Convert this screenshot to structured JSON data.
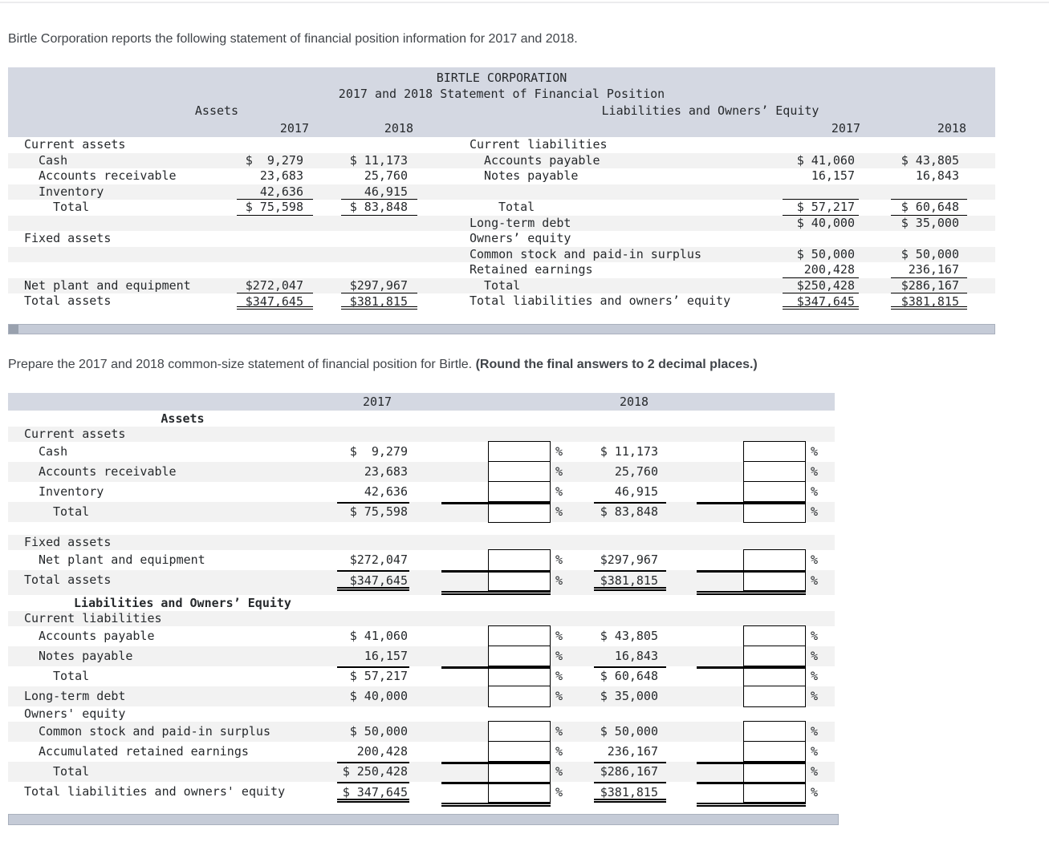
{
  "colors": {
    "header_band": "#d4d8e2",
    "row_stripe": "#f2f2f2",
    "scrollbar": "#c5cbd7",
    "accent_red": "#f71505",
    "table_text": "#26292c",
    "body_text": "#404449"
  },
  "intro": "Birtle Corporation reports the following statement of financial position information for 2017 and 2018.",
  "prompt": {
    "text": "Prepare the 2017 and 2018 common-size statement of financial position for Birtle.",
    "emphasis": "(Round the final answers to 2 decimal places.)"
  },
  "statement_table": {
    "title": "BIRTLE CORPORATION",
    "subtitle": "2017 and 2018 Statement of Financial Position",
    "left_section": "Assets",
    "right_section": "Liabilities and Owners’ Equity",
    "years": {
      "left": [
        "2017",
        "2018"
      ],
      "right": [
        "2017",
        "2018"
      ]
    },
    "rows": [
      {
        "ll": "Current assets",
        "rl": "Current liabilities"
      },
      {
        "ll": "Cash",
        "li": 1,
        "l17": "$  9,279",
        "l18": "$ 11,173",
        "rl": "Accounts payable",
        "ri": 1,
        "r17": "$ 41,060",
        "r18": "$ 43,805",
        "st": 1
      },
      {
        "ll": "Accounts receivable",
        "li": 1,
        "l17": "23,683",
        "l18": "25,760",
        "rl": "Notes payable",
        "ri": 1,
        "r17": "16,157",
        "r18": "16,843"
      },
      {
        "ll": "Inventory",
        "li": 1,
        "l17": "42,636",
        "l18": "46,915",
        "ul": "u",
        "ur": "u",
        "st": 1
      },
      {
        "ll": "Total",
        "li": 2,
        "l17": "$ 75,598",
        "l18": "$ 83,848",
        "ul": "u",
        "rl": "Total",
        "ri": 2,
        "r17": "$ 57,217",
        "r18": "$ 60,648",
        "ur": "u"
      },
      {
        "rl": "Long-term debt",
        "r17": "$ 40,000",
        "r18": "$ 35,000",
        "st": 1
      },
      {
        "ll": "Fixed assets",
        "rl": "Owners’ equity"
      },
      {
        "rl": "Common stock and paid-in surplus",
        "r17": "$ 50,000",
        "r18": "$ 50,000",
        "st": 1
      },
      {
        "rl": "Retained earnings",
        "r17": "200,428",
        "r18": "236,167",
        "ur": "u"
      },
      {
        "ll": "Net plant and equipment",
        "l17": "$272,047",
        "l18": "$297,967",
        "ul": "u",
        "rl": "Total",
        "ri": 1,
        "r17": "$250,428",
        "r18": "$286,167",
        "ur": "u",
        "st": 1
      },
      {
        "ll": "Total assets",
        "l17": "$347,645",
        "l18": "$381,815",
        "ul": "d",
        "rl": "Total liabilities and owners’ equity",
        "r17": "$347,645",
        "r18": "$381,815",
        "ur": "d",
        "tall": 1
      }
    ]
  },
  "common_size_table": {
    "years": [
      "2017",
      "2018"
    ],
    "percent": "%",
    "rows": [
      {
        "lb": "Assets",
        "hb": 1
      },
      {
        "lb": "Current assets",
        "st": 1
      },
      {
        "lb": "Cash",
        "i": 1,
        "v17": "$  9,279",
        "v18": "$ 11,173",
        "box": 1
      },
      {
        "lb": "Accounts receivable",
        "i": 1,
        "v17": "23,683",
        "v18": "25,760",
        "box": 1,
        "st": 1
      },
      {
        "lb": "Inventory",
        "i": 1,
        "v17": "42,636",
        "v18": "46,915",
        "box": 1,
        "u": "u",
        "sum": "s"
      },
      {
        "lb": "Total",
        "i": 2,
        "v17": "$ 75,598",
        "v18": "$ 83,848",
        "box": 1,
        "st": 1
      },
      {
        "bl": 1
      },
      {
        "lb": "Fixed assets",
        "st": 1
      },
      {
        "lb": "Net plant and equipment",
        "i": 1,
        "v17": "$272,047",
        "v18": "$297,967",
        "box": 1,
        "u": "u",
        "sum": "s"
      },
      {
        "lb": "Total assets",
        "v17": "$347,645",
        "v18": "$381,815",
        "box": 1,
        "u": "d",
        "sum": "d",
        "gt": 1,
        "st": 1
      },
      {
        "lb": "Liabilities and Owners’ Equity",
        "hb": 1
      },
      {
        "lb": "Current liabilities",
        "st": 1
      },
      {
        "lb": "Accounts payable",
        "i": 1,
        "v17": "$ 41,060",
        "v18": "$ 43,805",
        "box": 1
      },
      {
        "lb": "Notes payable",
        "i": 1,
        "v17": "16,157",
        "v18": "16,843",
        "box": 1,
        "u": "u",
        "sum": "s",
        "st": 1
      },
      {
        "lb": "Total",
        "i": 2,
        "v17": "$ 57,217",
        "v18": "$ 60,648",
        "box": 1
      },
      {
        "lb": "Long-term debt",
        "v17": "$ 40,000",
        "v18": "$ 35,000",
        "box": 1,
        "st": 1
      },
      {
        "lb": "Owners' equity"
      },
      {
        "lb": "Common stock and paid-in surplus",
        "i": 1,
        "v17": "$ 50,000",
        "v18": "$ 50,000",
        "box": 1,
        "st": 1
      },
      {
        "lb": "Accumulated retained earnings",
        "i": 1,
        "v17": "200,428",
        "v18": "236,167",
        "box": 1,
        "u": "u",
        "sum": "s"
      },
      {
        "lb": "Total",
        "i": 2,
        "v17": "$ 250,428",
        "v18": "$286,167",
        "box": 1,
        "u": "u",
        "sum": "s",
        "st": 1
      },
      {
        "lb": "Total liabilities and owners' equity",
        "v17": "$ 347,645",
        "v18": "$381,815",
        "box": 1,
        "u": "d",
        "sum": "d",
        "gt": 1
      }
    ]
  }
}
